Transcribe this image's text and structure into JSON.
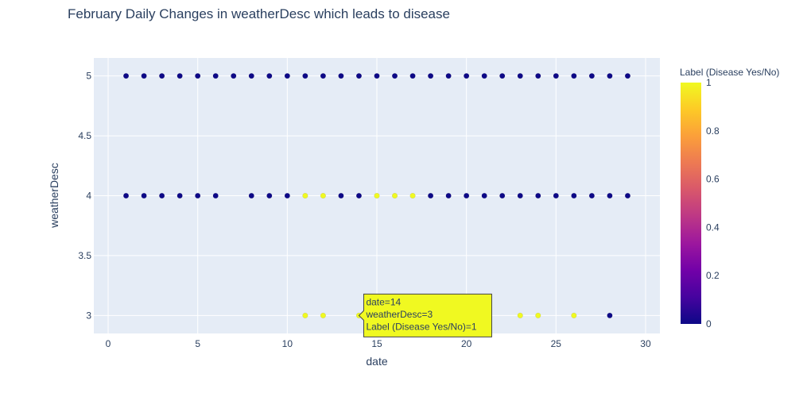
{
  "chart_data": {
    "type": "scatter",
    "title": "February Daily Changes in weatherDesc which leads to disease",
    "xlabel": "date",
    "ylabel": "weatherDesc",
    "xlim": [
      -0.8,
      30.8
    ],
    "ylim": [
      2.85,
      5.15
    ],
    "x_ticks": [
      0,
      5,
      10,
      15,
      20,
      25,
      30
    ],
    "y_ticks": [
      3,
      3.5,
      4,
      4.5,
      5
    ],
    "x_tick_labels": [
      "0",
      "5",
      "10",
      "15",
      "20",
      "25",
      "30"
    ],
    "y_tick_labels": [
      "3",
      "3.5",
      "4",
      "4.5",
      "5"
    ],
    "grid": true,
    "colorbar": {
      "title": "Label (Disease Yes/No)",
      "range": [
        0,
        1
      ],
      "ticks": [
        0,
        0.2,
        0.4,
        0.6,
        0.8,
        1
      ],
      "tick_labels": [
        "0",
        "0.2",
        "0.4",
        "0.6",
        "0.8",
        "1"
      ],
      "colorscale": [
        "#0d0887",
        "#46039f",
        "#7201a8",
        "#9c179e",
        "#bd3786",
        "#d8576b",
        "#ed7953",
        "#fb9f3a",
        "#fdca26",
        "#f0f921"
      ]
    },
    "points": [
      {
        "x": 1,
        "y": 5,
        "label": 0
      },
      {
        "x": 2,
        "y": 5,
        "label": 0
      },
      {
        "x": 3,
        "y": 5,
        "label": 0
      },
      {
        "x": 4,
        "y": 5,
        "label": 0
      },
      {
        "x": 5,
        "y": 5,
        "label": 0
      },
      {
        "x": 6,
        "y": 5,
        "label": 0
      },
      {
        "x": 7,
        "y": 5,
        "label": 0
      },
      {
        "x": 8,
        "y": 5,
        "label": 0
      },
      {
        "x": 9,
        "y": 5,
        "label": 0
      },
      {
        "x": 10,
        "y": 5,
        "label": 0
      },
      {
        "x": 11,
        "y": 5,
        "label": 0
      },
      {
        "x": 12,
        "y": 5,
        "label": 0
      },
      {
        "x": 13,
        "y": 5,
        "label": 0
      },
      {
        "x": 14,
        "y": 5,
        "label": 0
      },
      {
        "x": 15,
        "y": 5,
        "label": 0
      },
      {
        "x": 16,
        "y": 5,
        "label": 0
      },
      {
        "x": 17,
        "y": 5,
        "label": 0
      },
      {
        "x": 18,
        "y": 5,
        "label": 0
      },
      {
        "x": 19,
        "y": 5,
        "label": 0
      },
      {
        "x": 20,
        "y": 5,
        "label": 0
      },
      {
        "x": 21,
        "y": 5,
        "label": 0
      },
      {
        "x": 22,
        "y": 5,
        "label": 0
      },
      {
        "x": 23,
        "y": 5,
        "label": 0
      },
      {
        "x": 24,
        "y": 5,
        "label": 0
      },
      {
        "x": 25,
        "y": 5,
        "label": 0
      },
      {
        "x": 26,
        "y": 5,
        "label": 0
      },
      {
        "x": 27,
        "y": 5,
        "label": 0
      },
      {
        "x": 28,
        "y": 5,
        "label": 0
      },
      {
        "x": 29,
        "y": 5,
        "label": 0
      },
      {
        "x": 1,
        "y": 4,
        "label": 0
      },
      {
        "x": 2,
        "y": 4,
        "label": 0
      },
      {
        "x": 3,
        "y": 4,
        "label": 0
      },
      {
        "x": 4,
        "y": 4,
        "label": 0
      },
      {
        "x": 5,
        "y": 4,
        "label": 0
      },
      {
        "x": 6,
        "y": 4,
        "label": 0
      },
      {
        "x": 8,
        "y": 4,
        "label": 0
      },
      {
        "x": 9,
        "y": 4,
        "label": 0
      },
      {
        "x": 10,
        "y": 4,
        "label": 0
      },
      {
        "x": 11,
        "y": 4,
        "label": 1
      },
      {
        "x": 12,
        "y": 4,
        "label": 1
      },
      {
        "x": 13,
        "y": 4,
        "label": 0
      },
      {
        "x": 14,
        "y": 4,
        "label": 0
      },
      {
        "x": 15,
        "y": 4,
        "label": 1
      },
      {
        "x": 16,
        "y": 4,
        "label": 1
      },
      {
        "x": 17,
        "y": 4,
        "label": 1
      },
      {
        "x": 18,
        "y": 4,
        "label": 0
      },
      {
        "x": 19,
        "y": 4,
        "label": 0
      },
      {
        "x": 20,
        "y": 4,
        "label": 0
      },
      {
        "x": 21,
        "y": 4,
        "label": 0
      },
      {
        "x": 22,
        "y": 4,
        "label": 0
      },
      {
        "x": 23,
        "y": 4,
        "label": 0
      },
      {
        "x": 24,
        "y": 4,
        "label": 0
      },
      {
        "x": 25,
        "y": 4,
        "label": 0
      },
      {
        "x": 26,
        "y": 4,
        "label": 0
      },
      {
        "x": 27,
        "y": 4,
        "label": 0
      },
      {
        "x": 28,
        "y": 4,
        "label": 0
      },
      {
        "x": 29,
        "y": 4,
        "label": 0
      },
      {
        "x": 11,
        "y": 3,
        "label": 1
      },
      {
        "x": 12,
        "y": 3,
        "label": 1
      },
      {
        "x": 14,
        "y": 3,
        "label": 1
      },
      {
        "x": 23,
        "y": 3,
        "label": 1
      },
      {
        "x": 24,
        "y": 3,
        "label": 1
      },
      {
        "x": 26,
        "y": 3,
        "label": 1
      },
      {
        "x": 28,
        "y": 3,
        "label": 0
      }
    ],
    "hover": {
      "x": 14,
      "y": 3,
      "lines": [
        "date=14",
        "weatherDesc=3",
        "Label (Disease Yes/No)=1"
      ]
    }
  },
  "colors": {
    "plot_bg": "#e5ecf6",
    "grid": "#ffffff",
    "text": "#2a3f5f",
    "low": "#0d0887",
    "high": "#f0f921",
    "hover_bg": "#f0f921",
    "hover_border": "#444444"
  }
}
